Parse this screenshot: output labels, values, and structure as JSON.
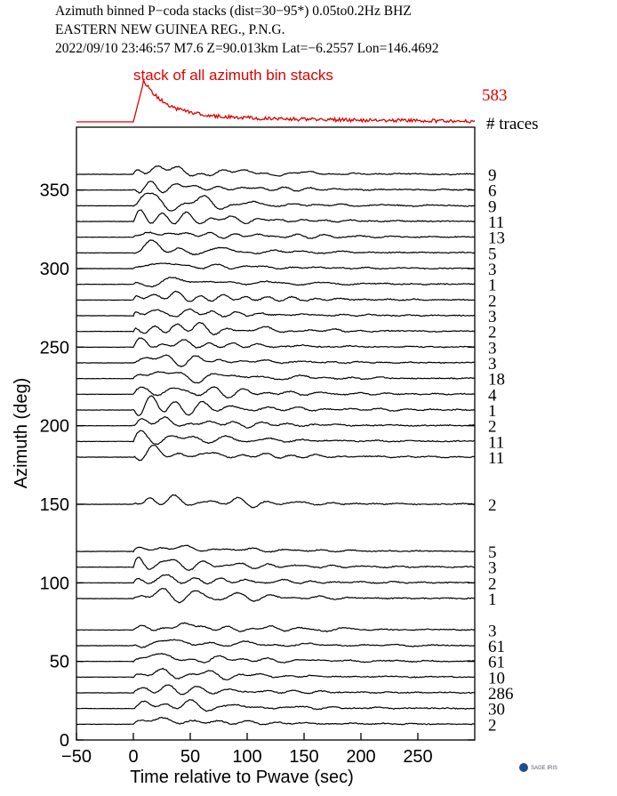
{
  "header": {
    "line1": "Azimuth binned P−coda stacks (dist=30−95*)  0.05to0.2Hz  BHZ",
    "line2": "EASTERN NEW GUINEA REG., P.N.G.",
    "line3": "2022/09/10  23:46:57  M7.6  Z=90.013km Lat=−6.2557 Lon=146.4692"
  },
  "stack": {
    "label": "stack of all azimuth bin stacks",
    "count": "583",
    "count_header": "# traces",
    "color": "#e00000"
  },
  "logo": {
    "text": "SAGE IRIS",
    "color": "#1f4e8c"
  },
  "chart_data": {
    "type": "line",
    "xlabel": "Time relative to Pwave (sec)",
    "ylabel": "Azimuth (deg)",
    "xlim": [
      -50,
      300
    ],
    "ylim": [
      0,
      390
    ],
    "xticks": [
      -50,
      0,
      50,
      100,
      150,
      200,
      250
    ],
    "xtick_labels": [
      "−50",
      "0",
      "50",
      "100",
      "150",
      "200",
      "250"
    ],
    "yticks": [
      0,
      50,
      100,
      150,
      200,
      250,
      300,
      350
    ],
    "ytick_labels": [
      "0",
      "50",
      "100",
      "150",
      "200",
      "250",
      "300",
      "350"
    ],
    "grid": false,
    "trace_color": "#000000",
    "traces": [
      {
        "azimuth": 360,
        "count": "9"
      },
      {
        "azimuth": 350,
        "count": "6"
      },
      {
        "azimuth": 340,
        "count": "9"
      },
      {
        "azimuth": 330,
        "count": "11"
      },
      {
        "azimuth": 320,
        "count": "13"
      },
      {
        "azimuth": 310,
        "count": "5"
      },
      {
        "azimuth": 300,
        "count": "3"
      },
      {
        "azimuth": 290,
        "count": "1"
      },
      {
        "azimuth": 280,
        "count": "2"
      },
      {
        "azimuth": 270,
        "count": "3"
      },
      {
        "azimuth": 260,
        "count": "2"
      },
      {
        "azimuth": 250,
        "count": "3"
      },
      {
        "azimuth": 240,
        "count": "3"
      },
      {
        "azimuth": 230,
        "count": "18"
      },
      {
        "azimuth": 220,
        "count": "4"
      },
      {
        "azimuth": 210,
        "count": "1"
      },
      {
        "azimuth": 200,
        "count": "2"
      },
      {
        "azimuth": 190,
        "count": "11"
      },
      {
        "azimuth": 180,
        "count": "11"
      },
      {
        "azimuth": 150,
        "count": "2"
      },
      {
        "azimuth": 120,
        "count": "5"
      },
      {
        "azimuth": 110,
        "count": "3"
      },
      {
        "azimuth": 100,
        "count": "2"
      },
      {
        "azimuth": 90,
        "count": "1"
      },
      {
        "azimuth": 70,
        "count": "3"
      },
      {
        "azimuth": 60,
        "count": "61"
      },
      {
        "azimuth": 50,
        "count": "61"
      },
      {
        "azimuth": 40,
        "count": "10"
      },
      {
        "azimuth": 30,
        "count": "286"
      },
      {
        "azimuth": 20,
        "count": "30"
      },
      {
        "azimuth": 10,
        "count": "2"
      }
    ]
  }
}
